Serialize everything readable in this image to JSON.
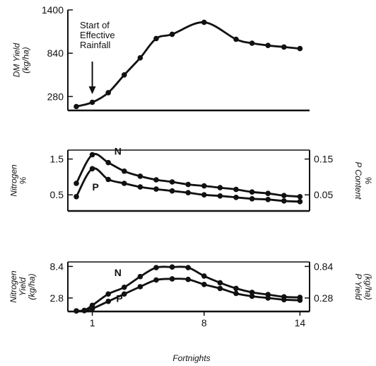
{
  "chart_data": [
    {
      "type": "line",
      "title": "",
      "ylabel_lines": [
        "DM Yield",
        "(kg/ha)"
      ],
      "y_ticks": [
        "1400",
        "840",
        "280"
      ],
      "y_tick_values": [
        1400,
        840,
        280
      ],
      "ylim": [
        100,
        1400
      ],
      "xlim": [
        -0.5,
        14.5
      ],
      "annotation": {
        "lines": [
          "Start of",
          "Effective",
          "Rainfall"
        ],
        "x": 1
      },
      "series": [
        {
          "points": [
            [
              0,
              150
            ],
            [
              1,
              205
            ],
            [
              2,
              330
            ],
            [
              3,
              560
            ],
            [
              4,
              780
            ],
            [
              5,
              1030
            ],
            [
              6,
              1085
            ],
            [
              8,
              1240
            ],
            [
              10,
              1020
            ],
            [
              11,
              970
            ],
            [
              12,
              940
            ],
            [
              13,
              920
            ],
            [
              14,
              900
            ]
          ]
        }
      ]
    },
    {
      "type": "line",
      "title": "",
      "ylabel_lines": [
        "Nitrogen",
        "%"
      ],
      "ylabel_right_lines": [
        "P Content",
        "%"
      ],
      "y_ticks": [
        "1.5",
        "0.5"
      ],
      "y_tick_values": [
        1.5,
        0.5
      ],
      "y_ticks_right": [
        "0.15",
        "0.05"
      ],
      "y_tick_values_right": [
        0.15,
        0.05
      ],
      "ylim": [
        0.05,
        1.75
      ],
      "xlim": [
        -0.5,
        14.5
      ],
      "series": [
        {
          "name": "N",
          "points": [
            [
              0,
              0.82
            ],
            [
              1,
              1.62
            ],
            [
              2,
              1.4
            ],
            [
              3,
              1.16
            ],
            [
              4,
              1.02
            ],
            [
              5,
              0.92
            ],
            [
              6,
              0.86
            ],
            [
              7,
              0.79
            ],
            [
              8,
              0.75
            ],
            [
              9,
              0.7
            ],
            [
              10,
              0.65
            ],
            [
              11,
              0.58
            ],
            [
              12,
              0.54
            ],
            [
              13,
              0.48
            ],
            [
              14,
              0.45
            ]
          ]
        },
        {
          "name": "P",
          "points": [
            [
              0,
              0.45
            ],
            [
              1,
              1.23
            ],
            [
              2,
              0.93
            ],
            [
              3,
              0.82
            ],
            [
              4,
              0.72
            ],
            [
              5,
              0.66
            ],
            [
              6,
              0.61
            ],
            [
              7,
              0.56
            ],
            [
              8,
              0.5
            ],
            [
              9,
              0.47
            ],
            [
              10,
              0.43
            ],
            [
              11,
              0.39
            ],
            [
              12,
              0.37
            ],
            [
              13,
              0.33
            ],
            [
              14,
              0.31
            ]
          ]
        }
      ]
    },
    {
      "type": "line",
      "title": "",
      "ylabel_lines": [
        "Nitrogen",
        "Yield",
        "(kg/ha)"
      ],
      "ylabel_right_lines": [
        "P Yield",
        "(kg/ha)"
      ],
      "y_ticks": [
        "8.4",
        "2.8"
      ],
      "y_tick_values": [
        8.4,
        2.8
      ],
      "y_ticks_right": [
        "0.84",
        "0.28"
      ],
      "y_tick_values_right": [
        0.84,
        0.28
      ],
      "xlabel": "Fortnights",
      "x_ticks": [
        "1",
        "8",
        "14"
      ],
      "x_tick_values": [
        1,
        8,
        14
      ],
      "ylim": [
        0.4,
        9.2
      ],
      "xlim": [
        -0.5,
        14.5
      ],
      "series": [
        {
          "name": "N",
          "points": [
            [
              0,
              0.5
            ],
            [
              0.5,
              0.6
            ],
            [
              1,
              1.5
            ],
            [
              2,
              3.5
            ],
            [
              3,
              4.7
            ],
            [
              4,
              6.6
            ],
            [
              5,
              8.2
            ],
            [
              6,
              8.3
            ],
            [
              7,
              8.2
            ],
            [
              8,
              6.7
            ],
            [
              9,
              5.5
            ],
            [
              10,
              4.5
            ],
            [
              11,
              3.8
            ],
            [
              12,
              3.4
            ],
            [
              13,
              3.0
            ],
            [
              14,
              2.9
            ]
          ]
        },
        {
          "name": "P",
          "points": [
            [
              0,
              0.5
            ],
            [
              0.5,
              0.55
            ],
            [
              1,
              0.9
            ],
            [
              2,
              2.2
            ],
            [
              3,
              3.5
            ],
            [
              4,
              4.8
            ],
            [
              5,
              6.0
            ],
            [
              6,
              6.2
            ],
            [
              7,
              6.1
            ],
            [
              8,
              5.2
            ],
            [
              9,
              4.5
            ],
            [
              10,
              3.6
            ],
            [
              11,
              3.1
            ],
            [
              12,
              2.8
            ],
            [
              13,
              2.5
            ],
            [
              14,
              2.4
            ]
          ]
        }
      ]
    }
  ]
}
